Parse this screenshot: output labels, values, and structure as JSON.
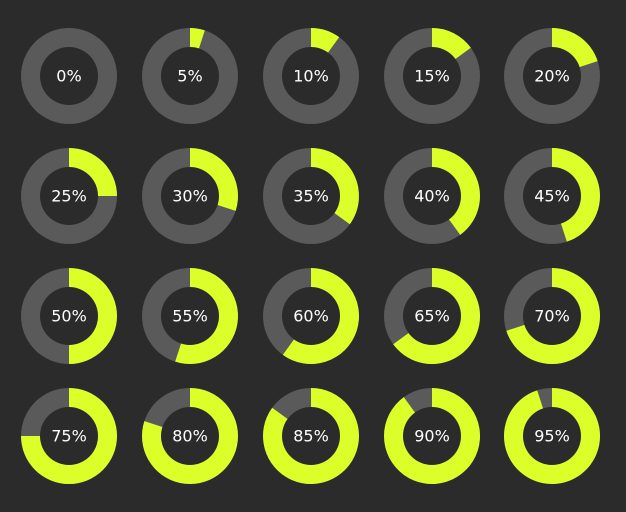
{
  "colors": {
    "background": "#2b2b2b",
    "track": "#5a5a5a",
    "fill": "#dcff2a",
    "text": "#ffffff"
  },
  "gauges": [
    {
      "label": "0%",
      "value": 0
    },
    {
      "label": "5%",
      "value": 5
    },
    {
      "label": "10%",
      "value": 10
    },
    {
      "label": "15%",
      "value": 15
    },
    {
      "label": "20%",
      "value": 20
    },
    {
      "label": "25%",
      "value": 25
    },
    {
      "label": "30%",
      "value": 30
    },
    {
      "label": "35%",
      "value": 35
    },
    {
      "label": "40%",
      "value": 40
    },
    {
      "label": "45%",
      "value": 45
    },
    {
      "label": "50%",
      "value": 50
    },
    {
      "label": "55%",
      "value": 55
    },
    {
      "label": "60%",
      "value": 60
    },
    {
      "label": "65%",
      "value": 65
    },
    {
      "label": "70%",
      "value": 70
    },
    {
      "label": "75%",
      "value": 75
    },
    {
      "label": "80%",
      "value": 80
    },
    {
      "label": "85%",
      "value": 85
    },
    {
      "label": "90%",
      "value": 90
    },
    {
      "label": "95%",
      "value": 95
    }
  ]
}
